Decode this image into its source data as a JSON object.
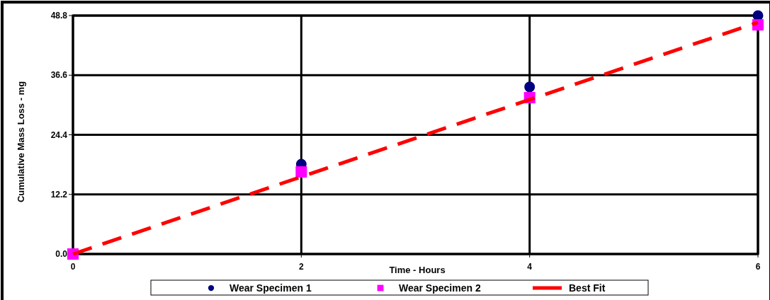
{
  "chart_data": {
    "type": "scatter",
    "xlabel": "Time - Hours",
    "ylabel": "Cumulative Mass Loss - mg",
    "xlim": [
      0,
      6
    ],
    "xticks": [
      0,
      2,
      4,
      6
    ],
    "ylim": [
      0,
      48.8
    ],
    "yticks": [
      {
        "value": 0,
        "label": "0.0"
      },
      12.2,
      24.4,
      36.6,
      48.8
    ],
    "grid": true,
    "legend": "bottom",
    "series": [
      {
        "name": "Wear Specimen 1",
        "marker": "circle",
        "color": "#000080",
        "x": [
          2,
          4,
          6
        ],
        "values": [
          18.4,
          34.2,
          48.8
        ]
      },
      {
        "name": "Wear Specimen 2",
        "marker": "square",
        "color": "#ff00ff",
        "x": [
          0,
          2,
          4,
          6
        ],
        "values": [
          0,
          16.8,
          32.0,
          46.9
        ]
      },
      {
        "name": "Best Fit",
        "type": "line",
        "line_style": "dashed",
        "marker": "none",
        "color": "#ff0000",
        "x": [
          0,
          6
        ],
        "values": [
          0,
          47.4
        ]
      }
    ]
  }
}
